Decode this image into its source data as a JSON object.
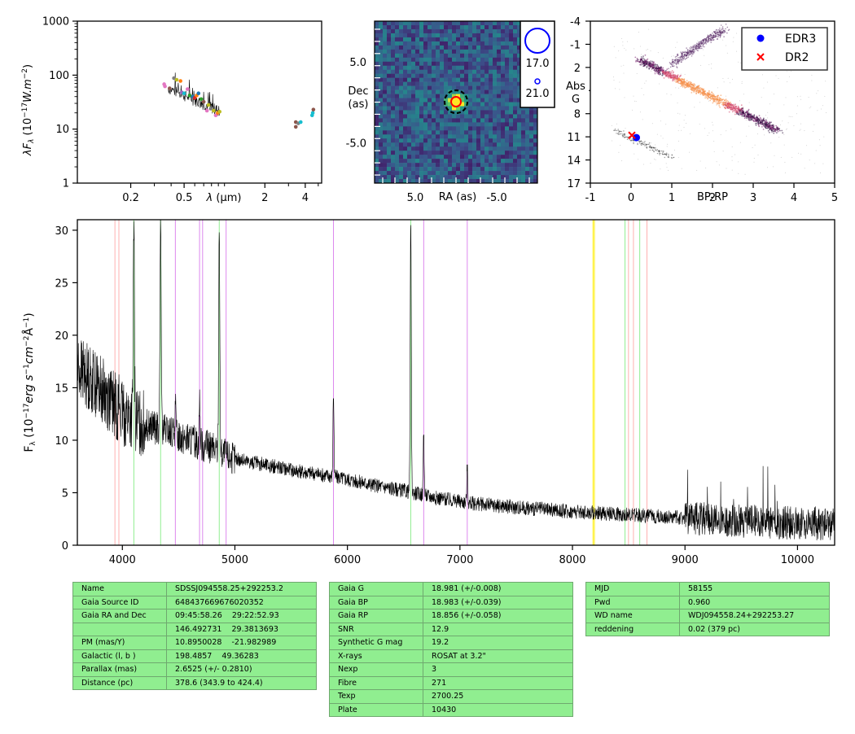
{
  "colors": {
    "identified_line_pink": "#ffb0b0",
    "identified_line_green": "#90ee90",
    "identified_line_violet": "#dd88ee",
    "identified_line_yellow": "#ffee00",
    "table_bg": "#90ee90",
    "edr3_marker": "#0000ff",
    "dr2_marker": "#ff0000"
  },
  "chart_data": [
    {
      "type": "scatter",
      "panel": "sed",
      "xlabel": "λ (μm)",
      "ylabel": "λF_λ (10^-17 W.m^-2)",
      "xscale": "log",
      "yscale": "log",
      "xlim": [
        0.08,
        5.3
      ],
      "ylim": [
        1,
        1000
      ],
      "xticklabels": [
        "0.2",
        "0.5",
        "2",
        "4"
      ],
      "xticks": [
        0.2,
        0.5,
        2,
        4
      ],
      "yticklabels": [
        "1",
        "10",
        "100",
        "1000"
      ],
      "yticks": [
        1,
        10,
        100,
        1000
      ],
      "photometry": [
        {
          "x": 0.355,
          "y": 68,
          "color": "#e377c2"
        },
        {
          "x": 0.36,
          "y": 62,
          "color": "#e377c2"
        },
        {
          "x": 0.39,
          "y": 57,
          "color": "#8c564b"
        },
        {
          "x": 0.42,
          "y": 88,
          "color": "#7f7f7f"
        },
        {
          "x": 0.44,
          "y": 82,
          "color": "#bcbd22"
        },
        {
          "x": 0.47,
          "y": 78,
          "color": "#ff7f0e"
        },
        {
          "x": 0.48,
          "y": 48,
          "color": "#9467bd"
        },
        {
          "x": 0.5,
          "y": 46,
          "color": "#17becf"
        },
        {
          "x": 0.53,
          "y": 55,
          "color": "#e377c2"
        },
        {
          "x": 0.55,
          "y": 42,
          "color": "#2ca02c"
        },
        {
          "x": 0.58,
          "y": 40,
          "color": "#1f77b4"
        },
        {
          "x": 0.6,
          "y": 38,
          "color": "#d62728"
        },
        {
          "x": 0.62,
          "y": 42,
          "color": "#ff7f0e"
        },
        {
          "x": 0.64,
          "y": 46,
          "color": "#1f77b4"
        },
        {
          "x": 0.67,
          "y": 36,
          "color": "#2ca02c"
        },
        {
          "x": 0.7,
          "y": 32,
          "color": "#8c564b"
        },
        {
          "x": 0.74,
          "y": 22,
          "color": "#e377c2"
        },
        {
          "x": 0.76,
          "y": 28,
          "color": "#bcbd22"
        },
        {
          "x": 0.79,
          "y": 24,
          "color": "#7f7f7f"
        },
        {
          "x": 0.83,
          "y": 22,
          "color": "#bcbd22"
        },
        {
          "x": 0.86,
          "y": 18,
          "color": "#e377c2"
        },
        {
          "x": 0.89,
          "y": 20,
          "color": "#ff7f0e"
        },
        {
          "x": 0.92,
          "y": 21,
          "color": "#bcbd22"
        },
        {
          "x": 3.4,
          "y": 11,
          "color": "#8c564b"
        },
        {
          "x": 3.4,
          "y": 13.5,
          "color": "#8c564b"
        },
        {
          "x": 3.55,
          "y": 12.8,
          "color": "#7f7f7f"
        },
        {
          "x": 3.7,
          "y": 13.5,
          "color": "#17becf"
        },
        {
          "x": 4.5,
          "y": 18,
          "color": "#17becf"
        },
        {
          "x": 4.55,
          "y": 20,
          "color": "#17becf"
        },
        {
          "x": 4.6,
          "y": 23,
          "color": "#8c564b"
        }
      ]
    },
    {
      "type": "heatmap",
      "panel": "image-cutout",
      "xlabel": "RA (as)",
      "ylabel": "Dec\n(as)",
      "xticklabels": [
        "5.0",
        "-5.0"
      ],
      "yticklabels": [
        "5.0",
        "-5.0"
      ],
      "xlim": [
        10,
        -10
      ],
      "ylim": [
        -10,
        10
      ],
      "source_position": [
        0,
        0
      ],
      "legend": [
        {
          "label": "17.0",
          "marker": "large blue circle"
        },
        {
          "label": "21.0",
          "marker": "small blue circle"
        }
      ]
    },
    {
      "type": "scatter",
      "panel": "hr-diagram",
      "xlabel": "BP-RP",
      "ylabel": "Abs\nG",
      "xlim": [
        -1,
        5
      ],
      "ylim": [
        17,
        -4
      ],
      "xticklabels": [
        "-1",
        "0",
        "1",
        "2",
        "3",
        "4",
        "5"
      ],
      "yticklabels": [
        "-4",
        "-1",
        "2",
        "5",
        "8",
        "11",
        "14",
        "17"
      ],
      "legend_position": "top-right",
      "series": [
        {
          "name": "EDR3",
          "marker": "circle",
          "color": "#0000ff",
          "x": [
            0.13
          ],
          "y": [
            11.1
          ]
        },
        {
          "name": "DR2",
          "marker": "x",
          "color": "#ff0000",
          "x": [
            0.02
          ],
          "y": [
            10.8
          ]
        }
      ]
    },
    {
      "type": "line",
      "panel": "spectrum",
      "xlabel": "",
      "ylabel": "F_λ (10^-17 erg s^-1 cm^-2 Å^-1)",
      "xlim": [
        3600,
        10330
      ],
      "ylim": [
        0,
        31
      ],
      "xticklabels": [
        "4000",
        "5000",
        "6000",
        "7000",
        "8000",
        "9000",
        "10000"
      ],
      "yticklabels": [
        "0",
        "5",
        "10",
        "15",
        "20",
        "25",
        "30"
      ],
      "continuum_x": [
        3600,
        3800,
        4000,
        4200,
        4400,
        4600,
        4800,
        5000,
        5300,
        5600,
        5900,
        6200,
        6500,
        6800,
        7100,
        7500,
        8000,
        8500,
        9000,
        9500,
        10000,
        10330
      ],
      "continuum_y": [
        17,
        15,
        12.5,
        11.5,
        10.8,
        10.0,
        9.2,
        8.2,
        7.6,
        7.0,
        6.5,
        5.8,
        5.2,
        4.5,
        4.0,
        3.6,
        3.2,
        2.9,
        2.6,
        2.3,
        2.1,
        2.0
      ],
      "emission_lines": [
        {
          "x": 3970,
          "y": 14
        },
        {
          "x": 4102,
          "y": 31
        },
        {
          "x": 4340,
          "y": 31
        },
        {
          "x": 4471,
          "y": 13.5
        },
        {
          "x": 4686,
          "y": 14
        },
        {
          "x": 4861,
          "y": 31
        },
        {
          "x": 5876,
          "y": 14.5
        },
        {
          "x": 6563,
          "y": 31
        },
        {
          "x": 6678,
          "y": 11
        },
        {
          "x": 7065,
          "y": 7.5
        }
      ],
      "reference_lines": [
        {
          "x": 3934,
          "color": "#ffb0b0"
        },
        {
          "x": 3969,
          "color": "#ffb0b0"
        },
        {
          "x": 4102,
          "color": "#90ee90"
        },
        {
          "x": 4340,
          "color": "#90ee90"
        },
        {
          "x": 4471,
          "color": "#dd88ee"
        },
        {
          "x": 4686,
          "color": "#dd88ee"
        },
        {
          "x": 4713,
          "color": "#dd88ee"
        },
        {
          "x": 4861,
          "color": "#90ee90"
        },
        {
          "x": 4922,
          "color": "#dd88ee"
        },
        {
          "x": 5876,
          "color": "#dd88ee"
        },
        {
          "x": 6563,
          "color": "#90ee90"
        },
        {
          "x": 6678,
          "color": "#dd88ee"
        },
        {
          "x": 7065,
          "color": "#dd88ee"
        },
        {
          "x": 8183,
          "color": "#ffee00"
        },
        {
          "x": 8195,
          "color": "#ffee00"
        },
        {
          "x": 8467,
          "color": "#90ee90"
        },
        {
          "x": 8498,
          "color": "#ffb0b0"
        },
        {
          "x": 8542,
          "color": "#ffb0b0"
        },
        {
          "x": 8598,
          "color": "#90ee90"
        },
        {
          "x": 8662,
          "color": "#ffb0b0"
        }
      ]
    }
  ],
  "tables": [
    {
      "rows": [
        [
          "Name",
          "SDSSJ094558.25+292253.2"
        ],
        [
          "Gaia Source ID",
          "648437669676020352"
        ],
        [
          "Gaia RA and Dec",
          "09:45:58.26    29:22:52.93"
        ],
        [
          "",
          "146.492731    29.3813693"
        ],
        [
          "PM (mas/Y)",
          "10.8950028    -21.982989"
        ],
        [
          "Galactic (l, b )",
          "198.4857    49.36283"
        ],
        [
          "Parallax (mas)",
          "2.6525 (+/- 0.2810)"
        ],
        [
          "Distance (pc)",
          "378.6 (343.9 to 424.4)"
        ]
      ]
    },
    {
      "rows": [
        [
          "Gaia G",
          "18.981 (+/-0.008)"
        ],
        [
          "Gaia BP",
          "18.983 (+/-0.039)"
        ],
        [
          "Gaia RP",
          "18.856 (+/-0.058)"
        ],
        [
          "SNR",
          "12.9"
        ],
        [
          "Synthetic G mag",
          "19.2"
        ],
        [
          "X-rays",
          "ROSAT at 3.2\""
        ],
        [
          "Nexp",
          "3"
        ],
        [
          "Fibre",
          "271"
        ],
        [
          "Texp",
          "2700.25"
        ],
        [
          "Plate",
          "10430"
        ]
      ]
    },
    {
      "rows": [
        [
          "MJD",
          "58155"
        ],
        [
          "Pwd",
          "0.960"
        ],
        [
          "WD name",
          "WDJ094558.24+292253.27"
        ],
        [
          "reddening",
          "0.02 (379 pc)"
        ]
      ]
    }
  ]
}
